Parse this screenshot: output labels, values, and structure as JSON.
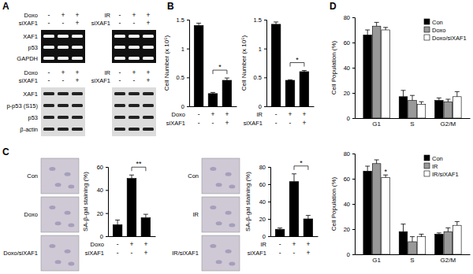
{
  "panel_labels": [
    "A",
    "B",
    "C",
    "D"
  ],
  "panel_a": {
    "rt_pcr": {
      "groups": [
        {
          "conditions": [
            {
              "name": "Doxo",
              "values": [
                "-",
                "+",
                "+"
              ]
            },
            {
              "name": "siXAF1",
              "values": [
                "-",
                "-",
                "+"
              ]
            }
          ]
        },
        {
          "conditions": [
            {
              "name": "IR",
              "values": [
                "-",
                "+",
                "+"
              ]
            },
            {
              "name": "siXAF1",
              "values": [
                "-",
                "-",
                "+"
              ]
            }
          ]
        }
      ],
      "bands": [
        "XAF1",
        "p53",
        "GAPDH"
      ]
    },
    "western": {
      "groups": [
        {
          "conditions": [
            {
              "name": "Doxo",
              "values": [
                "-",
                "+",
                "+"
              ]
            },
            {
              "name": "siXAF1",
              "values": [
                "-",
                "-",
                "+"
              ]
            }
          ]
        },
        {
          "conditions": [
            {
              "name": "IR",
              "values": [
                "-",
                "+",
                "+"
              ]
            },
            {
              "name": "siXAF1",
              "values": [
                "-",
                "-",
                "+"
              ]
            }
          ]
        }
      ],
      "bands": [
        "XAF1",
        "p-p53 (S15)",
        "p53",
        "β-actin"
      ]
    }
  },
  "panel_c_images": [
    {
      "labels": [
        "Con",
        "Doxo",
        "Doxo/siXAF1"
      ]
    },
    {
      "labels": [
        "Con",
        "IR",
        "IR/siXAF1"
      ]
    }
  ],
  "chart_data": [
    {
      "type": "bar",
      "categories": [
        null,
        null,
        null
      ],
      "values": [
        1.4,
        0.22,
        0.45
      ],
      "errors": [
        0.04,
        0.02,
        0.04
      ],
      "color": "#000000",
      "ylabel": "Cell Number (x 10⁵)",
      "ylim": [
        0,
        1.5
      ],
      "yticks": [
        0,
        0.5,
        1,
        1.5
      ],
      "conditions": [
        {
          "name": "Doxo",
          "values": [
            "-",
            "+",
            "+"
          ]
        },
        {
          "name": "siXAF1",
          "values": [
            "-",
            "-",
            "+"
          ]
        }
      ],
      "annotations": [
        "*"
      ]
    },
    {
      "type": "bar",
      "categories": [
        null,
        null,
        null
      ],
      "values": [
        1.42,
        0.45,
        0.6
      ],
      "errors": [
        0.04,
        0.01,
        0.02
      ],
      "color": "#000000",
      "ylabel": "Cell Number (x 10⁵)",
      "ylim": [
        0,
        1.5
      ],
      "yticks": [
        0,
        0.5,
        1,
        1.5
      ],
      "conditions": [
        {
          "name": "IR",
          "values": [
            "-",
            "+",
            "+"
          ]
        },
        {
          "name": "siXAF1",
          "values": [
            "-",
            "-",
            "+"
          ]
        }
      ],
      "annotations": [
        "*"
      ]
    },
    {
      "type": "bar",
      "categories": [
        null,
        null,
        null
      ],
      "values": [
        10,
        50,
        16
      ],
      "errors": [
        4,
        3,
        3
      ],
      "color": "#000000",
      "ylabel": "SA-β-gal staining (%)",
      "ylim": [
        0,
        60
      ],
      "yticks": [
        0,
        20,
        40,
        60
      ],
      "conditions": [
        {
          "name": "Doxo",
          "values": [
            "-",
            "+",
            "+"
          ]
        },
        {
          "name": "siXAF1",
          "values": [
            "-",
            "-",
            "+"
          ]
        }
      ],
      "annotations": [
        "**"
      ]
    },
    {
      "type": "bar",
      "categories": [
        null,
        null,
        null
      ],
      "values": [
        8,
        63,
        20
      ],
      "errors": [
        1.5,
        9,
        4
      ],
      "color": "#000000",
      "ylabel": "SA-β-gal staining (%)",
      "ylim": [
        0,
        80
      ],
      "yticks": [
        0,
        20,
        40,
        60,
        80
      ],
      "conditions": [
        {
          "name": "IR",
          "values": [
            "-",
            "+",
            "+"
          ]
        },
        {
          "name": "siXAF1",
          "values": [
            "-",
            "-",
            "+"
          ]
        }
      ],
      "annotations": [
        "*"
      ]
    },
    {
      "type": "grouped_bar",
      "categories": [
        "G1",
        "S",
        "G2/M"
      ],
      "ylabel": "Cell Population (%)",
      "ylim": [
        0,
        80
      ],
      "yticks": [
        0,
        20,
        40,
        60,
        80
      ],
      "legend": "upper right",
      "series": [
        {
          "name": "Con",
          "color": "#000000",
          "values": [
            66,
            17,
            14
          ],
          "errors": [
            4,
            5,
            2
          ]
        },
        {
          "name": "Doxo",
          "color": "#999999",
          "values": [
            73,
            14,
            13
          ],
          "errors": [
            3,
            4,
            2
          ]
        },
        {
          "name": "Doxo/siXAF1",
          "color": "#ffffff",
          "values": [
            70,
            11,
            17
          ],
          "errors": [
            2,
            2,
            4
          ]
        }
      ]
    },
    {
      "type": "grouped_bar",
      "categories": [
        "G1",
        "S",
        "G2/M"
      ],
      "ylabel": "Cell Population (%)",
      "ylim": [
        0,
        80
      ],
      "yticks": [
        0,
        20,
        40,
        60,
        80
      ],
      "legend": "upper right",
      "series": [
        {
          "name": "Con",
          "color": "#000000",
          "values": [
            66,
            18,
            16
          ],
          "errors": [
            4,
            6,
            1
          ]
        },
        {
          "name": "IR",
          "color": "#999999",
          "values": [
            72,
            10,
            18
          ],
          "errors": [
            3,
            4,
            3
          ]
        },
        {
          "name": "IR/siXAF1",
          "color": "#ffffff",
          "values": [
            61,
            14,
            23
          ],
          "errors": [
            2,
            2,
            3
          ]
        }
      ],
      "annotations": [
        "*"
      ]
    }
  ]
}
